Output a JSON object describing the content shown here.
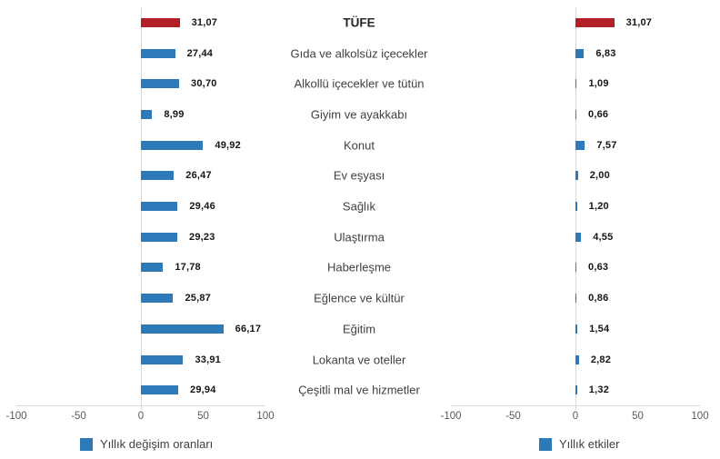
{
  "colors": {
    "bar": "#2e79b8",
    "highlight": "#b11f29",
    "axis_line": "#d9d9d9",
    "tick_text": "#595959",
    "category_text": "#3f3f3f",
    "value_text": "#151515"
  },
  "chart_data": {
    "type": "bar",
    "orientation": "horizontal",
    "title": "",
    "categories": [
      "TÜFE",
      "Gıda ve alkolsüz içecekler",
      "Alkollü içecekler ve tütün",
      "Giyim ve ayakkabı",
      "Konut",
      "Ev eşyası",
      "Sağlık",
      "Ulaştırma",
      "Haberleşme",
      "Eğlence ve kültür",
      "Eğitim",
      "Lokanta ve oteller",
      "Çeşitli mal ve hizmetler"
    ],
    "highlight_index": 0,
    "highlight_category": "TÜFE",
    "xlim": [
      -100,
      100
    ],
    "ticks": [
      -100,
      -50,
      0,
      50,
      100
    ],
    "tick_labels": [
      "-100",
      "-50",
      "0",
      "50",
      "100"
    ],
    "grid": "zero-line-only",
    "legend_position": "bottom",
    "series": [
      {
        "name": "Yıllık değişim oranları",
        "values": [
          31.07,
          27.44,
          30.7,
          8.99,
          49.92,
          26.47,
          29.46,
          29.23,
          17.78,
          25.87,
          66.17,
          33.91,
          29.94
        ],
        "value_labels": [
          "31,07",
          "27,44",
          "30,70",
          "8,99",
          "49,92",
          "26,47",
          "29,46",
          "29,23",
          "17,78",
          "25,87",
          "66,17",
          "33,91",
          "29,94"
        ]
      },
      {
        "name": "Yıllık etkiler",
        "values": [
          31.07,
          6.83,
          1.09,
          0.66,
          7.57,
          2.0,
          1.2,
          4.55,
          0.63,
          0.86,
          1.54,
          2.82,
          1.32
        ],
        "value_labels": [
          "31,07",
          "6,83",
          "1,09",
          "0,66",
          "7,57",
          "2,00",
          "1,20",
          "4,55",
          "0,63",
          "0,86",
          "1,54",
          "2,82",
          "1,32"
        ]
      }
    ]
  }
}
